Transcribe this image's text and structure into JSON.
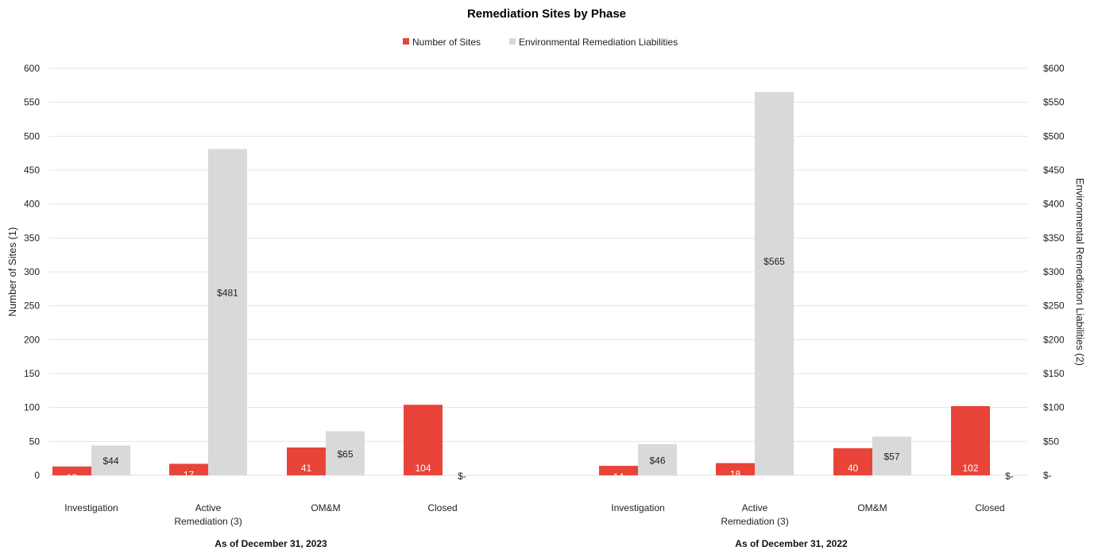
{
  "chart_data": {
    "type": "bar",
    "title": "Remediation Sites by Phase",
    "legend": {
      "placement": "top-center"
    },
    "left_axis": {
      "label": "Number of Sites (1)",
      "ylim": [
        0,
        600
      ],
      "ticks": [
        "0",
        "50",
        "100",
        "150",
        "200",
        "250",
        "300",
        "350",
        "400",
        "450",
        "500",
        "550",
        "600"
      ]
    },
    "right_axis": {
      "label": "Environmental Remediation Liabilities (2)",
      "ylim": [
        0,
        600
      ],
      "ticks": [
        "$-",
        "$50",
        "$100",
        "$150",
        "$200",
        "$250",
        "$300",
        "$350",
        "$400",
        "$450",
        "$500",
        "$550",
        "$600"
      ]
    },
    "grid": true,
    "series": [
      {
        "name": "Number of Sites",
        "color": "#e8443a",
        "axis": "left"
      },
      {
        "name": "Environmental Remediation Liabilities",
        "color": "#d9d9d9",
        "axis": "right"
      }
    ],
    "groups": [
      {
        "label": "As of December 31, 2023",
        "categories": [
          {
            "label_lines": [
              "Investigation"
            ],
            "sites": 13,
            "sites_label": "13",
            "liabilities": 44,
            "liabilities_label": "$44"
          },
          {
            "label_lines": [
              "Active",
              "Remediation (3)"
            ],
            "sites": 17,
            "sites_label": "17",
            "liabilities": 481,
            "liabilities_label": "$481"
          },
          {
            "label_lines": [
              "OM&M"
            ],
            "sites": 41,
            "sites_label": "41",
            "liabilities": 65,
            "liabilities_label": "$65"
          },
          {
            "label_lines": [
              "Closed"
            ],
            "sites": 104,
            "sites_label": "104",
            "liabilities": 0,
            "liabilities_label": "$-"
          }
        ]
      },
      {
        "label": "As of December 31, 2022",
        "categories": [
          {
            "label_lines": [
              "Investigation"
            ],
            "sites": 14,
            "sites_label": "14",
            "liabilities": 46,
            "liabilities_label": "$46"
          },
          {
            "label_lines": [
              "Active",
              "Remediation (3)"
            ],
            "sites": 18,
            "sites_label": "18",
            "liabilities": 565,
            "liabilities_label": "$565"
          },
          {
            "label_lines": [
              "OM&M"
            ],
            "sites": 40,
            "sites_label": "40",
            "liabilities": 57,
            "liabilities_label": "$57"
          },
          {
            "label_lines": [
              "Closed"
            ],
            "sites": 102,
            "sites_label": "102",
            "liabilities": 0,
            "liabilities_label": "$-"
          }
        ]
      }
    ]
  }
}
